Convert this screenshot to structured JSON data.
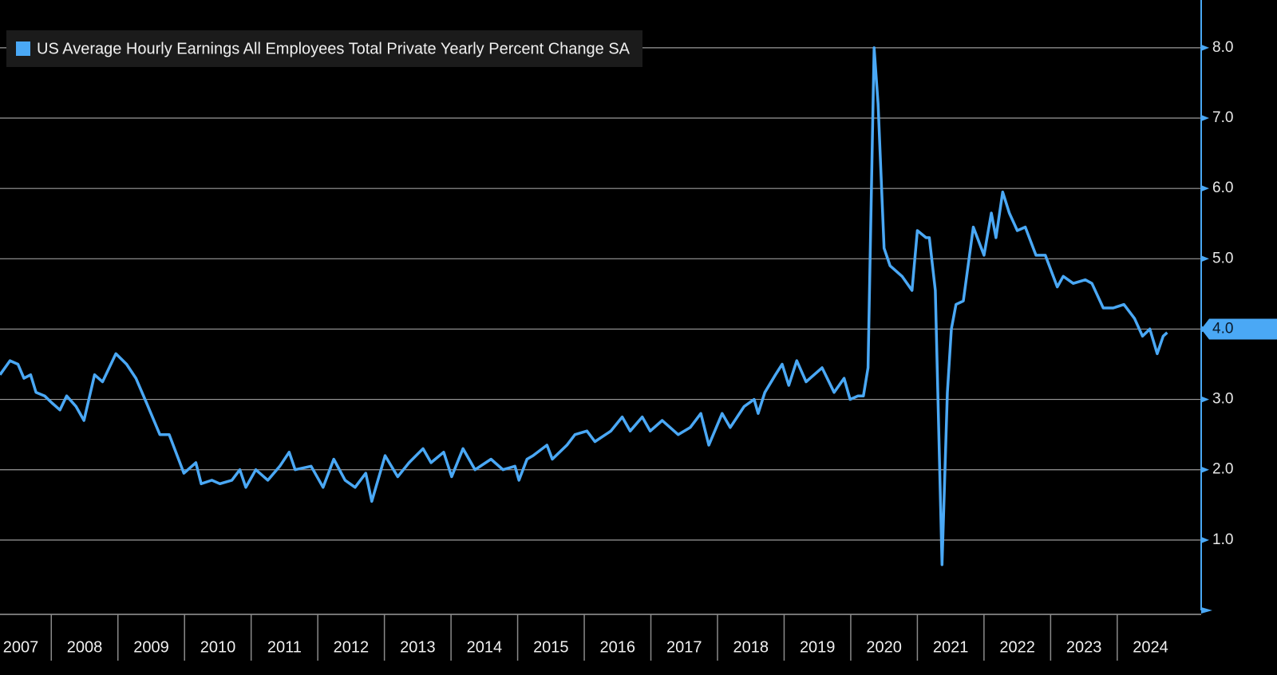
{
  "chart_data": {
    "type": "line",
    "legend": "top-left",
    "grid": true,
    "axis_color": "#4aa8f5",
    "xlim": [
      2007.23,
      2025.26
    ],
    "ylim": [
      0,
      8.6
    ],
    "yticks": [
      {
        "value": 1,
        "label": "1.0"
      },
      {
        "value": 2,
        "label": "2.0"
      },
      {
        "value": 3,
        "label": "3.0"
      },
      {
        "value": 4,
        "label": "4.0"
      },
      {
        "value": 5,
        "label": "5.0"
      },
      {
        "value": 6,
        "label": "6.0"
      },
      {
        "value": 7,
        "label": "7.0"
      },
      {
        "value": 8,
        "label": "8.0"
      }
    ],
    "xticks": [
      {
        "value": 2007,
        "label": "2007"
      },
      {
        "value": 2008,
        "label": "2008"
      },
      {
        "value": 2009,
        "label": "2009"
      },
      {
        "value": 2010,
        "label": "2010"
      },
      {
        "value": 2011,
        "label": "2011"
      },
      {
        "value": 2012,
        "label": "2012"
      },
      {
        "value": 2013,
        "label": "2013"
      },
      {
        "value": 2014,
        "label": "2014"
      },
      {
        "value": 2015,
        "label": "2015"
      },
      {
        "value": 2016,
        "label": "2016"
      },
      {
        "value": 2017,
        "label": "2017"
      },
      {
        "value": 2018,
        "label": "2018"
      },
      {
        "value": 2019,
        "label": "2019"
      },
      {
        "value": 2020,
        "label": "2020"
      },
      {
        "value": 2021,
        "label": "2021"
      },
      {
        "value": 2022,
        "label": "2022"
      },
      {
        "value": 2023,
        "label": "2023"
      },
      {
        "value": 2024,
        "label": "2024"
      }
    ],
    "x": [
      2007.23,
      2007.38,
      2007.5,
      2007.59,
      2007.69,
      2007.77,
      2007.9,
      2008.01,
      2008.13,
      2008.23,
      2008.37,
      2008.49,
      2008.65,
      2008.77,
      2008.97,
      2009.13,
      2009.27,
      2009.43,
      2009.63,
      2009.77,
      2009.99,
      2010.17,
      2010.25,
      2010.41,
      2010.53,
      2010.71,
      2010.83,
      2010.92,
      2011.07,
      2011.25,
      2011.43,
      2011.57,
      2011.66,
      2011.9,
      2012.08,
      2012.24,
      2012.41,
      2012.56,
      2012.72,
      2012.81,
      2013.01,
      2013.2,
      2013.37,
      2013.58,
      2013.7,
      2013.89,
      2014.01,
      2014.18,
      2014.36,
      2014.6,
      2014.78,
      2014.96,
      2015.02,
      2015.14,
      2015.23,
      2015.44,
      2015.52,
      2015.74,
      2015.86,
      2016.04,
      2016.16,
      2016.4,
      2016.57,
      2016.69,
      2016.87,
      2016.99,
      2017.17,
      2017.41,
      2017.59,
      2017.75,
      2017.87,
      2018.07,
      2018.19,
      2018.4,
      2018.55,
      2018.61,
      2018.71,
      2018.87,
      2018.97,
      2019.07,
      2019.19,
      2019.33,
      2019.57,
      2019.75,
      2019.9,
      2019.99,
      2020.11,
      2020.19,
      2020.26,
      2020.35,
      2020.41,
      2020.5,
      2020.59,
      2020.77,
      2020.92,
      2021.0,
      2021.13,
      2021.18,
      2021.27,
      2021.37,
      2021.45,
      2021.51,
      2021.58,
      2021.69,
      2021.84,
      2022.0,
      2022.11,
      2022.18,
      2022.28,
      2022.38,
      2022.5,
      2022.62,
      2022.78,
      2022.92,
      2023.1,
      2023.19,
      2023.34,
      2023.52,
      2023.62,
      2023.79,
      2023.94,
      2024.1,
      2024.26,
      2024.38,
      2024.49,
      2024.6,
      2024.69,
      2024.75
    ],
    "series": [
      {
        "name": "US Average Hourly Earnings All Employees Total Private Yearly Percent Change SA",
        "color": "#4aa8f5",
        "values": [
          3.35,
          3.55,
          3.5,
          3.3,
          3.35,
          3.1,
          3.05,
          2.95,
          2.85,
          3.05,
          2.9,
          2.7,
          3.35,
          3.25,
          3.65,
          3.5,
          3.3,
          2.95,
          2.5,
          2.5,
          1.95,
          2.1,
          1.8,
          1.85,
          1.8,
          1.85,
          2.0,
          1.75,
          2.0,
          1.85,
          2.05,
          2.25,
          2.0,
          2.05,
          1.75,
          2.15,
          1.85,
          1.75,
          1.95,
          1.55,
          2.2,
          1.9,
          2.1,
          2.3,
          2.1,
          2.25,
          1.9,
          2.3,
          2.0,
          2.15,
          2.0,
          2.05,
          1.85,
          2.15,
          2.2,
          2.35,
          2.15,
          2.35,
          2.5,
          2.55,
          2.4,
          2.55,
          2.75,
          2.55,
          2.75,
          2.55,
          2.7,
          2.5,
          2.6,
          2.8,
          2.35,
          2.8,
          2.6,
          2.9,
          3.0,
          2.8,
          3.1,
          3.35,
          3.5,
          3.2,
          3.55,
          3.25,
          3.45,
          3.1,
          3.3,
          3.0,
          3.05,
          3.05,
          3.45,
          8.0,
          7.2,
          5.15,
          4.9,
          4.75,
          4.55,
          5.4,
          5.3,
          5.3,
          4.55,
          0.65,
          3.1,
          4.0,
          4.35,
          4.4,
          5.45,
          5.05,
          5.65,
          5.3,
          5.95,
          5.65,
          5.4,
          5.45,
          5.05,
          5.05,
          4.6,
          4.75,
          4.65,
          4.7,
          4.65,
          4.3,
          4.3,
          4.35,
          4.15,
          3.9,
          4.0,
          3.65,
          3.9,
          3.95
        ]
      }
    ],
    "annotations": [
      {
        "text": "4.0",
        "value": 4.0
      }
    ]
  }
}
